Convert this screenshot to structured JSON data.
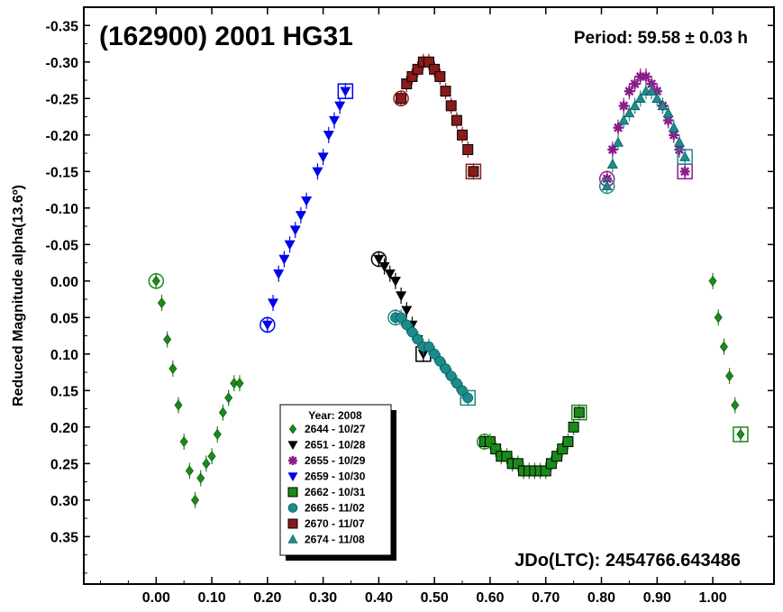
{
  "chart_data": {
    "type": "scatter",
    "title": "(162900) 2001 HG31",
    "period_text": "Period: 59.58 ± 0.03 h",
    "jdo_text": "JDo(LTC): 2454766.643486",
    "ylabel": "Reduced Magnitude alpha(13.6º)",
    "xlabel": "",
    "xlim": [
      -0.13,
      1.11
    ],
    "ylim": [
      0.415,
      -0.375
    ],
    "y_inverted": true,
    "x_ticks": [
      0.0,
      0.1,
      0.2,
      0.3,
      0.4,
      0.5,
      0.6,
      0.7,
      0.8,
      0.9,
      1.0
    ],
    "x_tick_labels": [
      "0.00",
      "0.10",
      "0.20",
      "0.30",
      "0.40",
      "0.50",
      "0.60",
      "0.70",
      "0.80",
      "0.90",
      "1.00"
    ],
    "y_ticks": [
      -0.35,
      -0.3,
      -0.25,
      -0.2,
      -0.15,
      -0.1,
      -0.05,
      0.0,
      0.05,
      0.1,
      0.15,
      0.2,
      0.25,
      0.3,
      0.35
    ],
    "y_tick_labels": [
      "-0.35",
      "-0.30",
      "-0.25",
      "-0.20",
      "-0.15",
      "-0.10",
      "-0.05",
      "0.00",
      "0.05",
      "0.10",
      "0.15",
      "0.20",
      "0.25",
      "0.30",
      "0.35"
    ],
    "legend": {
      "title": "Year: 2008",
      "placement": "bottom-center"
    },
    "series": [
      {
        "name": "2644 - 10/27",
        "marker": "diamond",
        "color": "#1a8a1a",
        "x": [
          0.0,
          0.01,
          0.02,
          0.03,
          0.04,
          0.05,
          0.06,
          0.07,
          0.08,
          0.09,
          0.1,
          0.11,
          0.12,
          0.13,
          0.14,
          0.15,
          1.0,
          1.01,
          1.02,
          1.03,
          1.04,
          1.05
        ],
        "y": [
          0.0,
          0.03,
          0.08,
          0.12,
          0.17,
          0.22,
          0.26,
          0.3,
          0.27,
          0.25,
          0.24,
          0.21,
          0.18,
          0.16,
          0.14,
          0.14,
          0.0,
          0.05,
          0.09,
          0.13,
          0.17,
          0.21
        ]
      },
      {
        "name": "2651 - 10/28",
        "marker": "triangle-down",
        "color": "#000000",
        "x": [
          0.4,
          0.41,
          0.42,
          0.43,
          0.44,
          0.45,
          0.46,
          0.47,
          0.48
        ],
        "y": [
          -0.03,
          -0.02,
          -0.01,
          0.0,
          0.02,
          0.04,
          0.06,
          0.08,
          0.1
        ]
      },
      {
        "name": "2655 - 10/29",
        "marker": "star",
        "color": "#8b1a8b",
        "x": [
          0.81,
          0.82,
          0.83,
          0.84,
          0.85,
          0.86,
          0.87,
          0.88,
          0.89,
          0.9,
          0.91,
          0.92,
          0.93,
          0.94,
          0.95
        ],
        "y": [
          -0.14,
          -0.18,
          -0.21,
          -0.24,
          -0.26,
          -0.27,
          -0.28,
          -0.28,
          -0.27,
          -0.26,
          -0.24,
          -0.22,
          -0.2,
          -0.18,
          -0.15
        ]
      },
      {
        "name": "2659 - 10/30",
        "marker": "triangle-down",
        "color": "#0000ee",
        "x": [
          0.2,
          0.21,
          0.22,
          0.23,
          0.24,
          0.25,
          0.26,
          0.27,
          0.29,
          0.3,
          0.31,
          0.32,
          0.33,
          0.34
        ],
        "y": [
          0.06,
          0.03,
          -0.01,
          -0.03,
          -0.05,
          -0.07,
          -0.09,
          -0.11,
          -0.15,
          -0.17,
          -0.2,
          -0.22,
          -0.24,
          -0.26
        ]
      },
      {
        "name": "2662 - 10/31",
        "marker": "square",
        "color": "#1a8a1a",
        "x": [
          0.59,
          0.6,
          0.61,
          0.62,
          0.63,
          0.64,
          0.65,
          0.66,
          0.67,
          0.68,
          0.69,
          0.7,
          0.71,
          0.72,
          0.73,
          0.74,
          0.75,
          0.76
        ],
        "y": [
          0.22,
          0.22,
          0.23,
          0.24,
          0.24,
          0.25,
          0.25,
          0.26,
          0.26,
          0.26,
          0.26,
          0.26,
          0.25,
          0.24,
          0.23,
          0.22,
          0.2,
          0.18
        ]
      },
      {
        "name": "2665 - 11/02",
        "marker": "circle",
        "color": "#1a8c8c",
        "x": [
          0.43,
          0.44,
          0.45,
          0.46,
          0.47,
          0.48,
          0.49,
          0.5,
          0.51,
          0.52,
          0.53,
          0.54,
          0.55,
          0.56
        ],
        "y": [
          0.05,
          0.05,
          0.06,
          0.07,
          0.08,
          0.09,
          0.09,
          0.1,
          0.11,
          0.12,
          0.13,
          0.14,
          0.15,
          0.16
        ]
      },
      {
        "name": "2670 - 11/07",
        "marker": "square",
        "color": "#8b1a1a",
        "x": [
          0.44,
          0.45,
          0.46,
          0.47,
          0.48,
          0.49,
          0.5,
          0.51,
          0.52,
          0.53,
          0.54,
          0.55,
          0.56,
          0.57
        ],
        "y": [
          -0.25,
          -0.27,
          -0.28,
          -0.29,
          -0.3,
          -0.3,
          -0.29,
          -0.28,
          -0.26,
          -0.24,
          -0.22,
          -0.2,
          -0.18,
          -0.15
        ]
      },
      {
        "name": "2674 - 11/08",
        "marker": "triangle-up",
        "color": "#1a8c8c",
        "x": [
          0.81,
          0.82,
          0.83,
          0.84,
          0.85,
          0.86,
          0.87,
          0.88,
          0.89,
          0.9,
          0.91,
          0.92,
          0.93,
          0.94,
          0.95
        ],
        "y": [
          -0.13,
          -0.16,
          -0.19,
          -0.22,
          -0.23,
          -0.24,
          -0.25,
          -0.26,
          -0.26,
          -0.25,
          -0.24,
          -0.23,
          -0.21,
          -0.19,
          -0.17
        ]
      }
    ]
  }
}
